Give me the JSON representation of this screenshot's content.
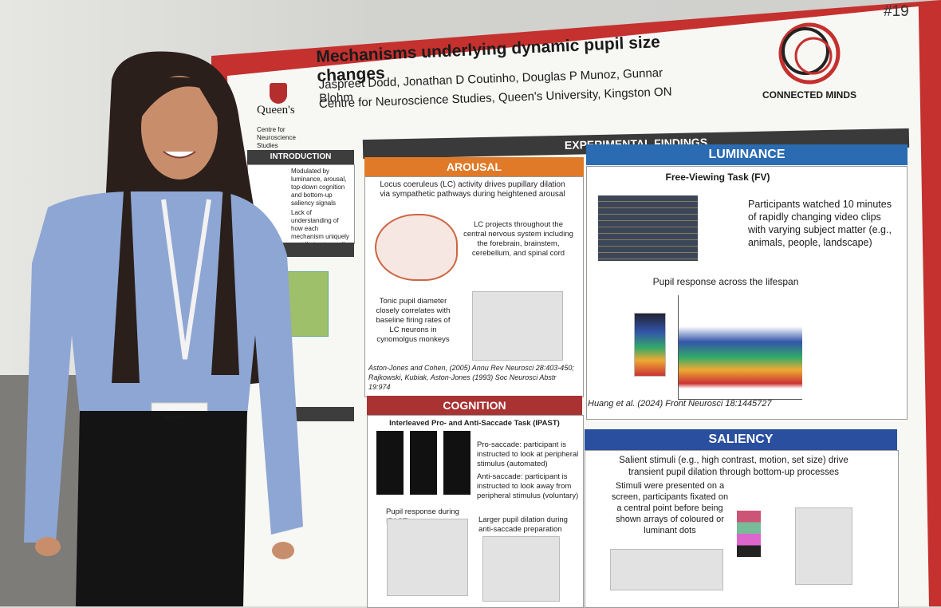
{
  "poster": {
    "number": "#19",
    "title": "Mechanisms underlying dynamic pupil size changes",
    "authors": "Jaspreet Dodd, Jonathan D Coutinho, Douglas P Munoz, Gunnar Blohm",
    "affiliation": "Centre for Neuroscience Studies, Queen's University, Kingston ON",
    "left_logo": {
      "name": "Queen's",
      "sub": "Centre for Neuroscience Studies"
    },
    "right_logo": "CONNECTED MINDS",
    "introduction": {
      "heading": "INTRODUCTION",
      "bullets": [
        "Modulated by luminance, arousal, top-down cognition and bottom-up saliency signals",
        "Lack of understanding of how each mechanism uniquely contributes to pupil size change"
      ]
    },
    "findings": {
      "heading": "EXPERIMENTAL FINDINGS",
      "arousal": {
        "heading": "AROUSAL",
        "lead": "Locus coeruleus (LC) activity drives pupillary dilation via sympathetic pathways during heightened arousal",
        "projection": "LC projects throughout the central nervous system including the forebrain, brainstem, cerebellum, and spinal cord",
        "tonic": "Tonic pupil diameter closely correlates with baseline firing rates of LC neurons in cynomolgus monkeys",
        "refs": "Aston-Jones and Cohen, (2005) Annu Rev Neurosci 28:403-450; Rajkowski, Kubiak, Aston-Jones (1993) Soc Neurosci Abstr 19:974"
      },
      "luminance": {
        "heading": "LUMINANCE",
        "task": "Free-Viewing Task (FV)",
        "description": "Participants watched 10 minutes of rapidly changing video clips with varying subject matter (e.g., animals, people, landscape)",
        "figure_title": "Pupil response across the lifespan",
        "ref": "Huang et al. (2024) Front Neurosci 18:1445727"
      },
      "cognition": {
        "heading": "COGNITION",
        "task": "Interleaved Pro- and Anti-Saccade Task (IPAST)",
        "pro": "Pro-saccade: participant is instructed to look at peripheral stimulus (automated)",
        "anti": "Anti-saccade: participant is instructed to look away from peripheral stimulus (voluntary)",
        "figure_left": "Pupil response during IPAST",
        "figure_right": "Larger pupil dilation during anti-saccade preparation"
      },
      "saliency": {
        "heading": "SALIENCY",
        "lead": "Salient stimuli (e.g., high contrast, motion, set size) drive transient pupil dilation through bottom-up processes",
        "method": "Stimuli were presented on a screen, participants fixated on a central point before being shown arrays of coloured or luminant dots"
      }
    }
  },
  "badge": {
    "name": "Jaspreet Dodd"
  }
}
